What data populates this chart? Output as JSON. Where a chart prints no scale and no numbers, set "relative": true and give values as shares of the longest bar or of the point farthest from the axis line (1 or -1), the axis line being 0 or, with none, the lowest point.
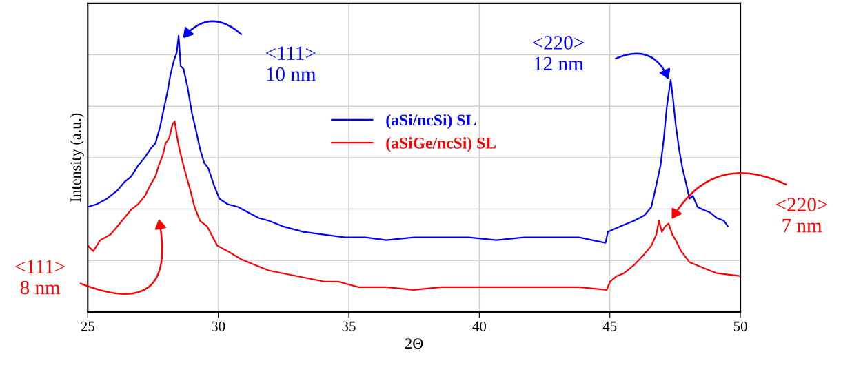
{
  "chart_data": {
    "type": "line",
    "relative": true,
    "xlabel": "2Θ",
    "ylabel": "Intensity (a.u.)",
    "xlim": [
      25,
      50
    ],
    "xticks": [
      25,
      30,
      35,
      40,
      45,
      50
    ],
    "tick_labels": "x",
    "grid": true,
    "legend": "center",
    "marker": "none",
    "line_style": "solid",
    "series": [
      {
        "name": "(aSi/ncSi) SL",
        "color": "#0000ff",
        "x": [
          25.0,
          25.34,
          25.74,
          26.14,
          26.4,
          26.66,
          26.93,
          27.19,
          27.4,
          27.59,
          27.77,
          27.9,
          28.04,
          28.17,
          28.3,
          28.41,
          28.48,
          28.56,
          28.67,
          28.83,
          28.99,
          29.14,
          29.3,
          29.46,
          29.62,
          29.83,
          30.04,
          30.36,
          30.76,
          31.15,
          31.55,
          31.94,
          32.47,
          33.26,
          34.05,
          34.85,
          35.64,
          36.43,
          37.49,
          38.54,
          39.6,
          40.65,
          41.71,
          42.77,
          43.82,
          44.83,
          44.93,
          45.41,
          45.93,
          46.33,
          46.59,
          46.78,
          46.94,
          47.07,
          47.18,
          47.25,
          47.33,
          47.41,
          47.52,
          47.65,
          47.78,
          47.91,
          48.05,
          48.18,
          48.36,
          48.57,
          48.84,
          49.1,
          49.37,
          49.52
        ],
        "values": [
          0.38,
          0.39,
          0.41,
          0.44,
          0.47,
          0.49,
          0.53,
          0.56,
          0.59,
          0.61,
          0.67,
          0.73,
          0.79,
          0.86,
          0.91,
          0.94,
          1.0,
          0.89,
          0.88,
          0.81,
          0.72,
          0.66,
          0.59,
          0.54,
          0.52,
          0.46,
          0.41,
          0.39,
          0.38,
          0.36,
          0.34,
          0.33,
          0.31,
          0.29,
          0.28,
          0.27,
          0.27,
          0.26,
          0.27,
          0.27,
          0.27,
          0.26,
          0.27,
          0.27,
          0.27,
          0.25,
          0.29,
          0.31,
          0.33,
          0.35,
          0.38,
          0.46,
          0.53,
          0.63,
          0.74,
          0.79,
          0.84,
          0.78,
          0.68,
          0.59,
          0.52,
          0.47,
          0.41,
          0.42,
          0.38,
          0.37,
          0.36,
          0.34,
          0.33,
          0.31
        ]
      },
      {
        "name": "(aSiGe/ncSi) SL",
        "color": "#ff0000",
        "x": [
          25.0,
          25.21,
          25.48,
          25.87,
          26.14,
          26.4,
          26.66,
          26.93,
          27.19,
          27.4,
          27.59,
          27.72,
          27.88,
          27.98,
          28.12,
          28.25,
          28.33,
          28.41,
          28.51,
          28.64,
          28.78,
          28.93,
          29.09,
          29.3,
          29.57,
          29.96,
          30.36,
          30.89,
          31.41,
          31.94,
          32.47,
          33.0,
          33.53,
          34.05,
          34.58,
          35.37,
          36.43,
          37.49,
          38.54,
          39.6,
          40.65,
          41.71,
          42.77,
          43.82,
          44.88,
          45.01,
          45.27,
          45.54,
          45.93,
          46.33,
          46.59,
          46.78,
          46.88,
          46.99,
          47.12,
          47.25,
          47.39,
          47.52,
          47.73,
          48.05,
          48.57,
          49.1,
          50.0
        ],
        "values": [
          0.24,
          0.22,
          0.26,
          0.28,
          0.31,
          0.34,
          0.37,
          0.39,
          0.42,
          0.46,
          0.49,
          0.53,
          0.57,
          0.61,
          0.63,
          0.68,
          0.69,
          0.64,
          0.59,
          0.54,
          0.49,
          0.44,
          0.38,
          0.33,
          0.31,
          0.24,
          0.22,
          0.19,
          0.17,
          0.15,
          0.14,
          0.13,
          0.12,
          0.11,
          0.11,
          0.09,
          0.09,
          0.08,
          0.09,
          0.09,
          0.09,
          0.09,
          0.09,
          0.09,
          0.08,
          0.11,
          0.13,
          0.14,
          0.17,
          0.21,
          0.24,
          0.28,
          0.33,
          0.29,
          0.31,
          0.32,
          0.28,
          0.26,
          0.22,
          0.18,
          0.16,
          0.14,
          0.13
        ]
      }
    ],
    "annotations": [
      "<111>\n10 nm",
      "<220>\n12 nm",
      "<111>\n8 nm",
      "<220>\n7 nm"
    ]
  }
}
